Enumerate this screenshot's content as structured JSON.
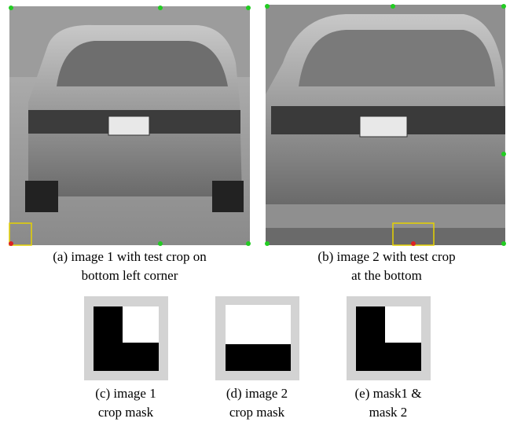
{
  "figures": [
    {
      "caption": [
        "(a) image 1 with test crop on",
        "bottom left corner"
      ]
    },
    {
      "caption": [
        "(b) image 2 with test crop",
        "at the bottom"
      ]
    }
  ],
  "masks": [
    {
      "caption": [
        "(c) image 1",
        "crop mask"
      ]
    },
    {
      "caption": [
        "(d) image 2",
        "crop mask"
      ]
    },
    {
      "caption": [
        "(e) mask1 &",
        "mask 2"
      ]
    }
  ]
}
